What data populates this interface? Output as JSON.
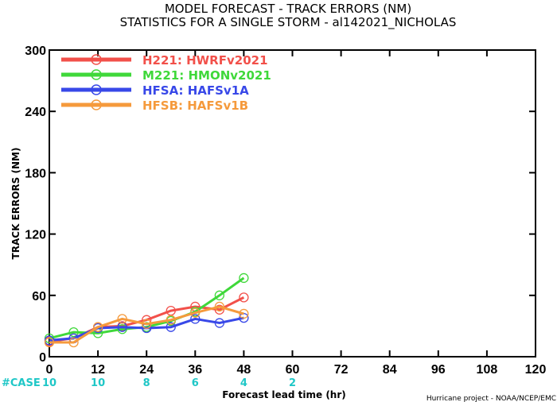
{
  "chart_data": {
    "type": "line",
    "title": "MODEL FORECAST - TRACK ERRORS (NM)",
    "subtitle": "STATISTICS FOR A SINGLE STORM - al142021_NICHOLAS",
    "xlabel": "Forecast lead time (hr)",
    "ylabel": "TRACK ERRORS (NM)",
    "xlim": [
      0,
      120
    ],
    "ylim": [
      0,
      300
    ],
    "x_ticks": [
      "0",
      "12",
      "24",
      "36",
      "48",
      "60",
      "72",
      "84",
      "96",
      "108",
      "120"
    ],
    "y_ticks": [
      "0",
      "60",
      "120",
      "180",
      "240",
      "300"
    ],
    "x": [
      0,
      6,
      12,
      18,
      24,
      30,
      36,
      42,
      48
    ],
    "series": [
      {
        "name": "H221:  HWRFv2021",
        "color": "#f2504a",
        "values": [
          15,
          18,
          29,
          30,
          36,
          45,
          49,
          46,
          58
        ]
      },
      {
        "name": "M221:  HMONv2021",
        "color": "#3fd83a",
        "values": [
          18,
          24,
          23,
          27,
          29,
          35,
          44,
          60,
          77
        ]
      },
      {
        "name": "HFSA:  HAFSv1A",
        "color": "#3848e8",
        "values": [
          16,
          18,
          28,
          29,
          28,
          29,
          37,
          33,
          38
        ]
      },
      {
        "name": "HFSB:  HAFSv1B",
        "color": "#f59a3c",
        "values": [
          14,
          14,
          29,
          37,
          32,
          36,
          43,
          49,
          42
        ]
      }
    ],
    "legend_position": "top-left",
    "grid": false
  },
  "cases": {
    "label": "#CASE",
    "color": "#1fc7c7",
    "items": [
      {
        "x": 0,
        "count": "10"
      },
      {
        "x": 12,
        "count": "10"
      },
      {
        "x": 24,
        "count": "8"
      },
      {
        "x": 36,
        "count": "6"
      },
      {
        "x": 48,
        "count": "4"
      },
      {
        "x": 60,
        "count": "2"
      }
    ]
  },
  "credit": "Hurricane project - NOAA/NCEP/EMC"
}
